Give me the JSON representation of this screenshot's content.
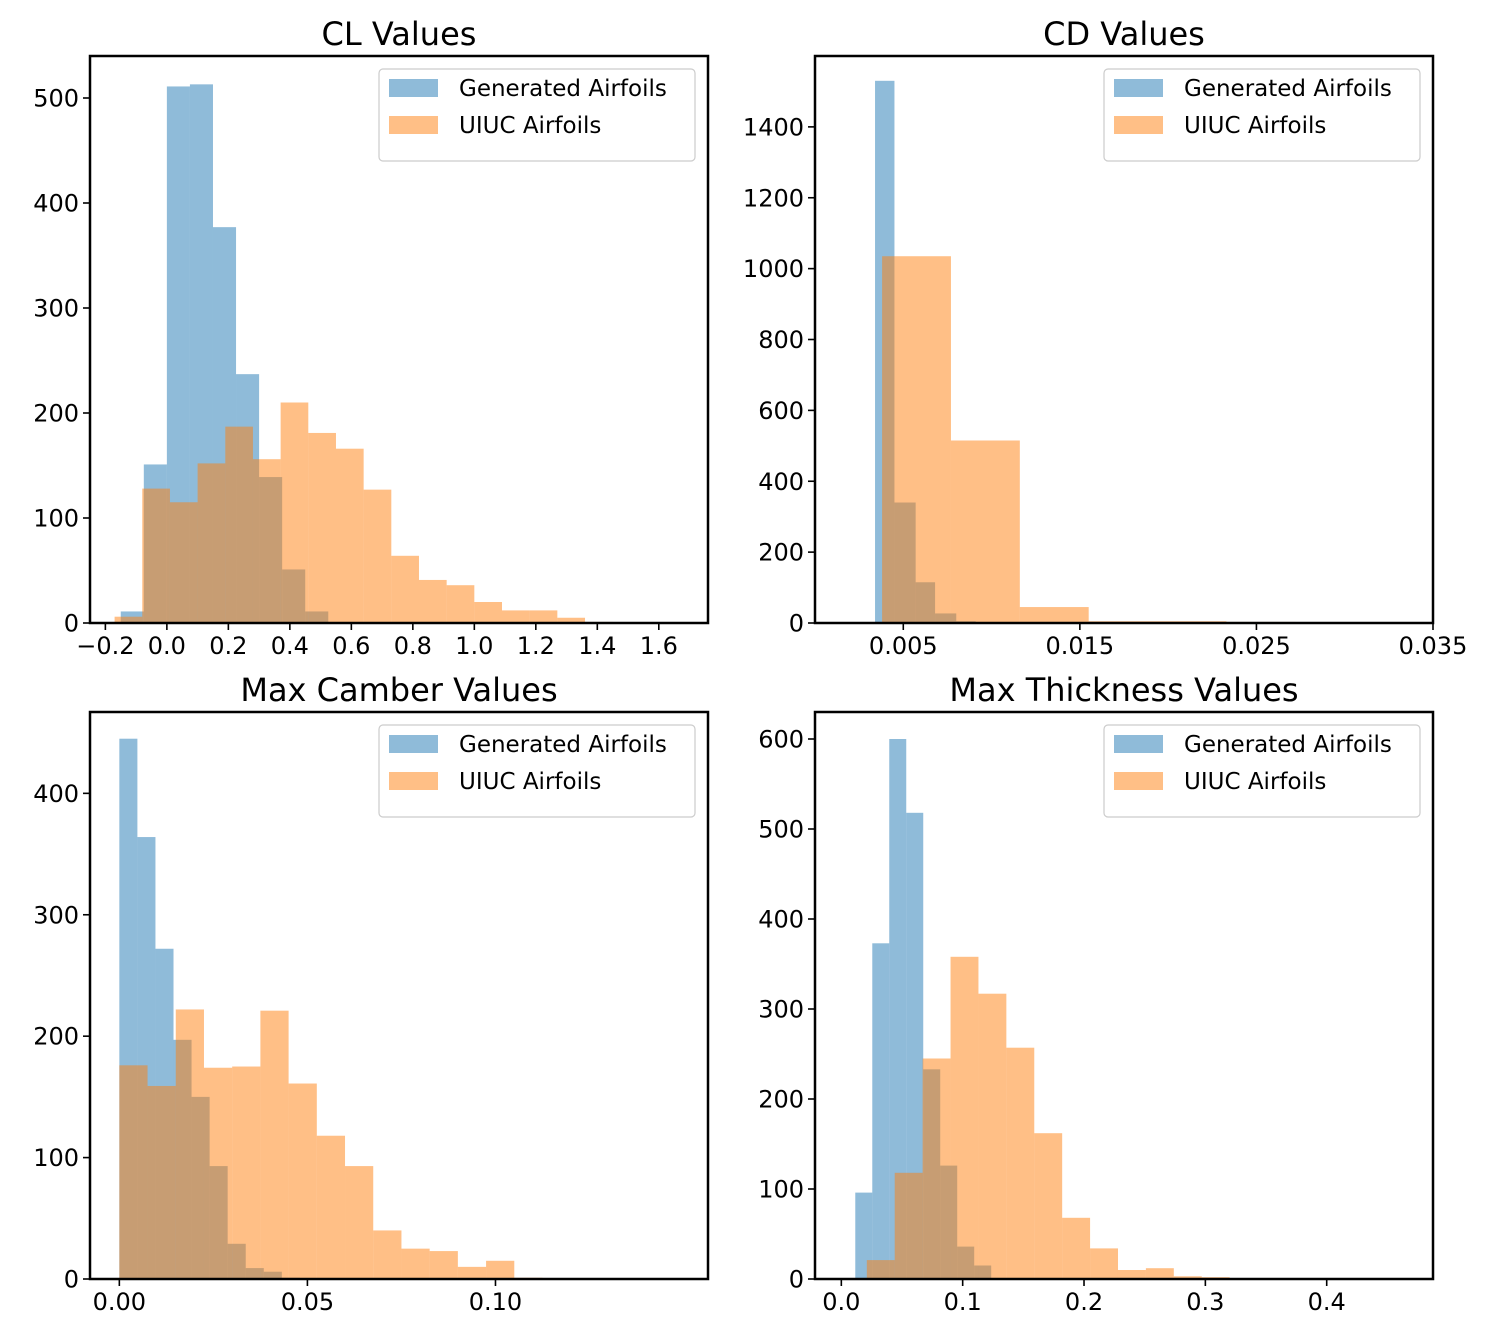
{
  "colors": {
    "generated": "#1f77b4",
    "uiuc": "#ff7f0e",
    "alpha": 0.5
  },
  "chart_data": [
    {
      "type": "bar",
      "title": "CL Values",
      "xlim": [
        -0.25,
        1.76
      ],
      "ylim": [
        0,
        540
      ],
      "xticks": [
        -0.2,
        0.0,
        0.2,
        0.4,
        0.6,
        0.8,
        1.0,
        1.2,
        1.4,
        1.6
      ],
      "xtick_labels": [
        "−0.2",
        "0.0",
        "0.2",
        "0.4",
        "0.6",
        "0.8",
        "1.0",
        "1.2",
        "1.4",
        "1.6"
      ],
      "yticks": [
        0,
        100,
        200,
        300,
        400,
        500
      ],
      "ytick_labels": [
        "0",
        "100",
        "200",
        "300",
        "400",
        "500"
      ],
      "legend": {
        "location": "upper-right",
        "entries": [
          "Generated Airfoils",
          "UIUC Airfoils"
        ]
      },
      "series": [
        {
          "name": "Generated Airfoils",
          "bins": [
            -0.15,
            -0.075,
            0.0,
            0.075,
            0.15,
            0.225,
            0.3,
            0.375,
            0.45,
            0.525
          ],
          "counts": [
            11,
            151,
            511,
            513,
            377,
            237,
            139,
            51,
            11
          ]
        },
        {
          "name": "UIUC Airfoils",
          "bins": [
            -0.17,
            -0.08,
            0.01,
            0.1,
            0.19,
            0.28,
            0.37,
            0.46,
            0.55,
            0.64,
            0.73,
            0.82,
            0.91,
            1.0,
            1.09,
            1.18,
            1.27,
            1.36,
            1.45
          ],
          "counts": [
            6,
            128,
            115,
            152,
            187,
            156,
            210,
            181,
            166,
            127,
            64,
            41,
            36,
            20,
            12,
            12,
            5,
            1
          ]
        }
      ]
    },
    {
      "type": "bar",
      "title": "CD Values",
      "xlim": [
        0.0,
        0.035
      ],
      "ylim": [
        0,
        1600
      ],
      "xticks": [
        0.005,
        0.015,
        0.025,
        0.035
      ],
      "xtick_labels": [
        "0.005",
        "0.015",
        "0.025",
        "0.035"
      ],
      "yticks": [
        0,
        200,
        400,
        600,
        800,
        1000,
        1200,
        1400
      ],
      "ytick_labels": [
        "0",
        "200",
        "400",
        "600",
        "800",
        "1000",
        "1200",
        "1400"
      ],
      "legend": {
        "location": "upper-right",
        "entries": [
          "Generated Airfoils",
          "UIUC Airfoils"
        ]
      },
      "series": [
        {
          "name": "Generated Airfoils",
          "bins": [
            0.0034,
            0.0045,
            0.0057,
            0.0068,
            0.008,
            0.0091
          ],
          "counts": [
            1530,
            340,
            115,
            27,
            5
          ]
        },
        {
          "name": "UIUC Airfoils",
          "bins": [
            0.0038,
            0.0077,
            0.0116,
            0.0155,
            0.0194,
            0.0233,
            0.0272
          ],
          "counts": [
            1035,
            515,
            45,
            5,
            5,
            3
          ]
        }
      ]
    },
    {
      "type": "bar",
      "title": "Max Camber Values",
      "xlim": [
        -0.0078,
        0.1565
      ],
      "ylim": [
        0,
        467
      ],
      "xticks": [
        0.0,
        0.05,
        0.1
      ],
      "xtick_labels": [
        "0.00",
        "0.05",
        "0.10"
      ],
      "yticks": [
        0,
        100,
        200,
        300,
        400
      ],
      "ytick_labels": [
        "0",
        "100",
        "200",
        "300",
        "400"
      ],
      "legend": {
        "location": "upper-right",
        "entries": [
          "Generated Airfoils",
          "UIUC Airfoils"
        ]
      },
      "series": [
        {
          "name": "Generated Airfoils",
          "bins": [
            0.0,
            0.0048,
            0.0096,
            0.0144,
            0.0192,
            0.024,
            0.0288,
            0.0336,
            0.0384,
            0.0432,
            0.048
          ],
          "counts": [
            445,
            364,
            272,
            197,
            150,
            93,
            29,
            9,
            6,
            1
          ]
        },
        {
          "name": "UIUC Airfoils",
          "bins": [
            0.0,
            0.0075,
            0.015,
            0.0225,
            0.03,
            0.0375,
            0.045,
            0.0525,
            0.06,
            0.0675,
            0.075,
            0.0825,
            0.09,
            0.0975,
            0.105,
            0.1125
          ],
          "counts": [
            176,
            159,
            222,
            174,
            175,
            221,
            161,
            118,
            93,
            40,
            25,
            23,
            10,
            15,
            1
          ]
        }
      ]
    },
    {
      "type": "bar",
      "title": "Max Thickness Values",
      "xlim": [
        -0.0217,
        0.4876
      ],
      "ylim": [
        0,
        630
      ],
      "xticks": [
        0.0,
        0.1,
        0.2,
        0.3,
        0.4
      ],
      "xtick_labels": [
        "0.0",
        "0.1",
        "0.2",
        "0.3",
        "0.4"
      ],
      "yticks": [
        0,
        100,
        200,
        300,
        400,
        500,
        600
      ],
      "ytick_labels": [
        "0",
        "100",
        "200",
        "300",
        "400",
        "500",
        "600"
      ],
      "legend": {
        "location": "upper-right",
        "entries": [
          "Generated Airfoils",
          "UIUC Airfoils"
        ]
      },
      "series": [
        {
          "name": "Generated Airfoils",
          "bins": [
            0.0115,
            0.0255,
            0.0395,
            0.0535,
            0.0675,
            0.0815,
            0.0955,
            0.1095,
            0.1235,
            0.1375
          ],
          "counts": [
            96,
            373,
            600,
            518,
            233,
            126,
            36,
            15,
            1
          ]
        },
        {
          "name": "UIUC Airfoils",
          "bins": [
            0.021,
            0.044,
            0.067,
            0.09,
            0.113,
            0.136,
            0.159,
            0.182,
            0.205,
            0.228,
            0.251,
            0.274,
            0.297,
            0.32,
            0.343
          ],
          "counts": [
            21,
            118,
            245,
            358,
            317,
            257,
            162,
            68,
            34,
            10,
            12,
            3,
            2,
            1
          ]
        }
      ]
    }
  ]
}
